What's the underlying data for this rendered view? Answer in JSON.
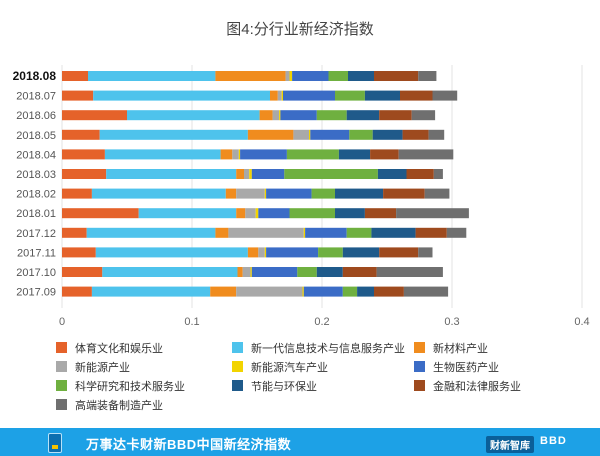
{
  "chart_data": {
    "type": "stacked-horizontal-bar",
    "title": "图4:分行业新经济指数",
    "categories": [
      "2018.08",
      "2018.07",
      "2018.06",
      "2018.05",
      "2018.04",
      "2018.03",
      "2018.02",
      "2018.01",
      "2017.12",
      "2017.11",
      "2017.10",
      "2017.09"
    ],
    "highlighted_category": "2018.08",
    "xlim": [
      0,
      0.4
    ],
    "xticks": [
      0,
      0.1,
      0.2,
      0.3,
      0.4
    ],
    "xtick_labels": [
      "0",
      "0.1",
      "0.2",
      "0.3",
      "0.4"
    ],
    "series": [
      {
        "name": "体育文化和娱乐业",
        "color": "#e5622a",
        "values": [
          0.02,
          0.024,
          0.05,
          0.029,
          0.033,
          0.034,
          0.023,
          0.059,
          0.019,
          0.026,
          0.031,
          0.023
        ]
      },
      {
        "name": "新一代信息技术与信息服务产业",
        "color": "#4ec3ec",
        "values": [
          0.098,
          0.136,
          0.102,
          0.114,
          0.089,
          0.1,
          0.103,
          0.075,
          0.099,
          0.117,
          0.104,
          0.091
        ]
      },
      {
        "name": "新材料产业",
        "color": "#f08c1e",
        "values": [
          0.054,
          0.006,
          0.01,
          0.035,
          0.009,
          0.006,
          0.008,
          0.007,
          0.01,
          0.008,
          0.004,
          0.02
        ]
      },
      {
        "name": "新能源产业",
        "color": "#a9a9a9",
        "values": [
          0.003,
          0.003,
          0.005,
          0.012,
          0.005,
          0.004,
          0.022,
          0.008,
          0.058,
          0.005,
          0.006,
          0.051
        ]
      },
      {
        "name": "新能源汽车产业",
        "color": "#f2d400",
        "values": [
          0.002,
          0.001,
          0.001,
          0.001,
          0.001,
          0.002,
          0.001,
          0.002,
          0.001,
          0.001,
          0.001,
          0.001
        ]
      },
      {
        "name": "生物医药产业",
        "color": "#3b6cc6",
        "values": [
          0.028,
          0.04,
          0.028,
          0.03,
          0.036,
          0.025,
          0.035,
          0.024,
          0.032,
          0.04,
          0.035,
          0.03
        ]
      },
      {
        "name": "科学研究和技术服务业",
        "color": "#6fb040",
        "values": [
          0.015,
          0.023,
          0.023,
          0.018,
          0.04,
          0.072,
          0.018,
          0.035,
          0.019,
          0.019,
          0.015,
          0.011
        ]
      },
      {
        "name": "节能与环保业",
        "color": "#1f5a8a",
        "values": [
          0.02,
          0.027,
          0.025,
          0.023,
          0.024,
          0.022,
          0.037,
          0.023,
          0.034,
          0.028,
          0.02,
          0.013
        ]
      },
      {
        "name": "金融和法律服务业",
        "color": "#9e4a1e",
        "values": [
          0.034,
          0.025,
          0.025,
          0.02,
          0.022,
          0.021,
          0.032,
          0.024,
          0.024,
          0.03,
          0.026,
          0.023
        ]
      },
      {
        "name": "高端装备制造产业",
        "color": "#6f6f6f",
        "values": [
          0.014,
          0.019,
          0.018,
          0.012,
          0.042,
          0.007,
          0.019,
          0.056,
          0.015,
          0.011,
          0.051,
          0.034
        ]
      }
    ]
  },
  "footer": {
    "title": "万事达卡财新BBD中国新经济指数",
    "brand": "财新智库",
    "brand2": "BBD"
  }
}
